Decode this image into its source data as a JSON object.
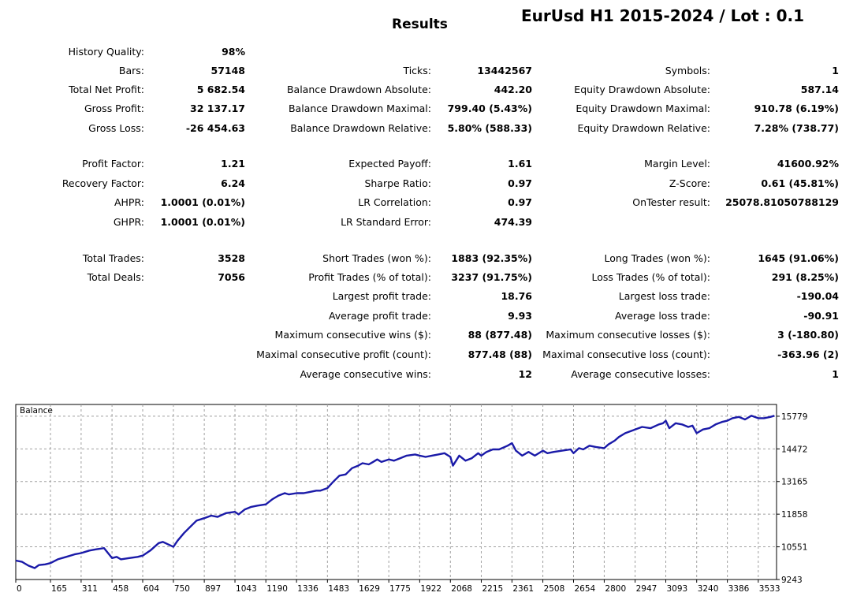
{
  "header": {
    "results_title": "Results",
    "test_title": "EurUsd H1 2015-2024 / Lot : 0.1"
  },
  "report": {
    "col1": [
      {
        "label": "History Quality:",
        "value": "98%",
        "row": 0
      },
      {
        "label": "Bars:",
        "value": "57148",
        "row": 1
      },
      {
        "label": "Total Net Profit:",
        "value": "5 682.54",
        "row": 2
      },
      {
        "label": "Gross Profit:",
        "value": "32 137.17",
        "row": 3
      },
      {
        "label": "Gross Loss:",
        "value": "-26 454.63",
        "row": 4
      },
      {
        "label": "Profit Factor:",
        "value": "1.21",
        "row": 5
      },
      {
        "label": "Recovery Factor:",
        "value": "6.24",
        "row": 6
      },
      {
        "label": "AHPR:",
        "value": "1.0001 (0.01%)",
        "row": 7
      },
      {
        "label": "GHPR:",
        "value": "1.0001 (0.01%)",
        "row": 8
      },
      {
        "label": "Total Trades:",
        "value": "3528",
        "row": 9
      },
      {
        "label": "Total Deals:",
        "value": "7056",
        "row": 10
      }
    ],
    "col2": [
      {
        "label": "Ticks:",
        "value": "13442567",
        "row": 1
      },
      {
        "label": "Balance Drawdown Absolute:",
        "value": "442.20",
        "row": 2
      },
      {
        "label": "Balance Drawdown Maximal:",
        "value": "799.40 (5.43%)",
        "row": 3
      },
      {
        "label": "Balance Drawdown Relative:",
        "value": "5.80% (588.33)",
        "row": 4
      },
      {
        "label": "Expected Payoff:",
        "value": "1.61",
        "row": 5
      },
      {
        "label": "Sharpe Ratio:",
        "value": "0.97",
        "row": 6
      },
      {
        "label": "LR Correlation:",
        "value": "0.97",
        "row": 7
      },
      {
        "label": "LR Standard Error:",
        "value": "474.39",
        "row": 8
      },
      {
        "label": "Short Trades (won %):",
        "value": "1883 (92.35%)",
        "row": 9
      },
      {
        "label": "Profit Trades (% of total):",
        "value": "3237 (91.75%)",
        "row": 10
      },
      {
        "label": "Largest profit trade:",
        "value": "18.76",
        "row": 11
      },
      {
        "label": "Average profit trade:",
        "value": "9.93",
        "row": 12
      },
      {
        "label": "Maximum consecutive wins ($):",
        "value": "88 (877.48)",
        "row": 13
      },
      {
        "label": "Maximal consecutive profit (count):",
        "value": "877.48 (88)",
        "row": 14
      },
      {
        "label": "Average consecutive wins:",
        "value": "12",
        "row": 15
      }
    ],
    "col3": [
      {
        "label": "Symbols:",
        "value": "1",
        "row": 1
      },
      {
        "label": "Equity Drawdown Absolute:",
        "value": "587.14",
        "row": 2
      },
      {
        "label": "Equity Drawdown Maximal:",
        "value": "910.78 (6.19%)",
        "row": 3
      },
      {
        "label": "Equity Drawdown Relative:",
        "value": "7.28% (738.77)",
        "row": 4
      },
      {
        "label": "Margin Level:",
        "value": "41600.92%",
        "row": 5
      },
      {
        "label": "Z-Score:",
        "value": "0.61 (45.81%)",
        "row": 6
      },
      {
        "label": "OnTester result:",
        "value": "25078.81050788129",
        "row": 7
      },
      {
        "label": "Long Trades (won %):",
        "value": "1645 (91.06%)",
        "row": 9
      },
      {
        "label": "Loss Trades (% of total):",
        "value": "291 (8.25%)",
        "row": 10
      },
      {
        "label": "Largest loss trade:",
        "value": "-190.04",
        "row": 11
      },
      {
        "label": "Average loss trade:",
        "value": "-90.91",
        "row": 12
      },
      {
        "label": "Maximum consecutive losses ($):",
        "value": "3 (-180.80)",
        "row": 13
      },
      {
        "label": "Maximal consecutive loss (count):",
        "value": "-363.96 (2)",
        "row": 14
      },
      {
        "label": "Average consecutive losses:",
        "value": "1",
        "row": 15
      }
    ]
  },
  "chart_data": {
    "type": "line",
    "title": "Balance",
    "line_color": "#1a1aa8",
    "x_ticks": [
      0,
      165,
      311,
      458,
      604,
      750,
      897,
      1043,
      1190,
      1336,
      1483,
      1629,
      1775,
      1922,
      2068,
      2215,
      2361,
      2508,
      2654,
      2800,
      2947,
      3093,
      3240,
      3386,
      3533
    ],
    "y_ticks": [
      9243,
      10551,
      11858,
      13165,
      14472,
      15779
    ],
    "xlim": [
      0,
      3620
    ],
    "ylim": [
      9243,
      16250
    ],
    "series": [
      {
        "name": "Balance",
        "x": [
          0,
          30,
          60,
          90,
          110,
          140,
          165,
          200,
          240,
          280,
          311,
          350,
          380,
          420,
          458,
          480,
          500,
          540,
          580,
          604,
          640,
          680,
          700,
          750,
          770,
          800,
          830,
          860,
          897,
          930,
          960,
          1000,
          1043,
          1060,
          1090,
          1120,
          1150,
          1190,
          1220,
          1250,
          1280,
          1300,
          1336,
          1370,
          1400,
          1430,
          1450,
          1483,
          1510,
          1540,
          1570,
          1600,
          1629,
          1650,
          1680,
          1700,
          1720,
          1740,
          1775,
          1800,
          1830,
          1860,
          1900,
          1922,
          1950,
          1980,
          2010,
          2040,
          2068,
          2080,
          2095,
          2110,
          2140,
          2170,
          2200,
          2215,
          2240,
          2270,
          2300,
          2340,
          2361,
          2380,
          2410,
          2440,
          2470,
          2508,
          2530,
          2560,
          2600,
          2640,
          2654,
          2680,
          2700,
          2730,
          2760,
          2800,
          2820,
          2850,
          2870,
          2900,
          2947,
          2980,
          3020,
          3060,
          3080,
          3093,
          3110,
          3140,
          3170,
          3200,
          3220,
          3240,
          3270,
          3300,
          3330,
          3360,
          3386,
          3410,
          3440,
          3470,
          3500,
          3533,
          3560,
          3590,
          3610
        ],
        "y": [
          10000,
          9950,
          9800,
          9700,
          9820,
          9850,
          9900,
          10050,
          10150,
          10250,
          10300,
          10400,
          10450,
          10500,
          10100,
          10150,
          10050,
          10100,
          10150,
          10200,
          10400,
          10700,
          10750,
          10550,
          10800,
          11100,
          11350,
          11600,
          11700,
          11800,
          11750,
          11900,
          11950,
          11850,
          12050,
          12150,
          12200,
          12250,
          12450,
          12600,
          12700,
          12650,
          12700,
          12700,
          12750,
          12800,
          12800,
          12900,
          13150,
          13400,
          13450,
          13700,
          13800,
          13900,
          13850,
          13950,
          14050,
          13950,
          14050,
          14000,
          14100,
          14200,
          14250,
          14200,
          14150,
          14200,
          14250,
          14300,
          14150,
          13800,
          14000,
          14200,
          14000,
          14100,
          14300,
          14200,
          14350,
          14450,
          14450,
          14600,
          14700,
          14400,
          14200,
          14350,
          14200,
          14400,
          14300,
          14350,
          14400,
          14450,
          14300,
          14500,
          14450,
          14600,
          14550,
          14500,
          14650,
          14800,
          14950,
          15100,
          15250,
          15350,
          15300,
          15450,
          15500,
          15600,
          15300,
          15500,
          15450,
          15350,
          15400,
          15100,
          15250,
          15300,
          15450,
          15550,
          15600,
          15700,
          15750,
          15650,
          15800,
          15700,
          15700,
          15750,
          15800
        ]
      }
    ]
  }
}
